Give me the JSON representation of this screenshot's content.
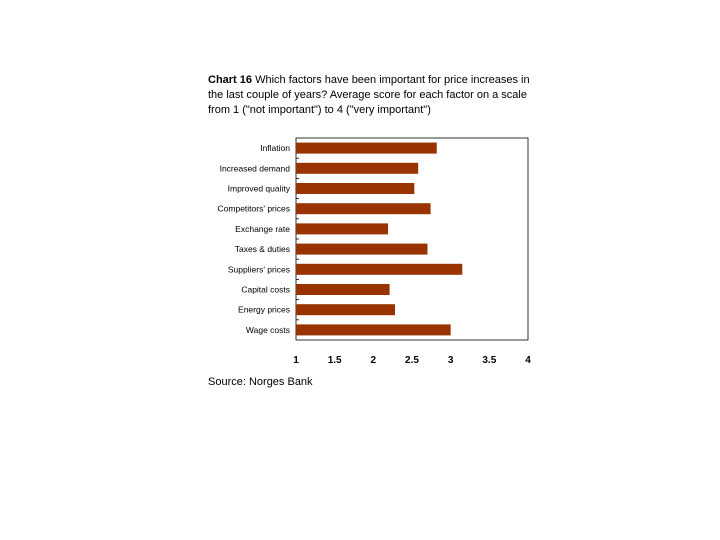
{
  "chart_data": {
    "type": "bar",
    "orientation": "horizontal",
    "title_bold": "Chart 16",
    "title": "Which factors have been important for price increases in the last couple of years? Average score for each factor on a scale from 1 (\"not important\") to 4 (\"very important\")",
    "categories": [
      "Inflation",
      "Increased demand",
      "Improved quality",
      "Competitors' prices",
      "Exchange rate",
      "Taxes & duties",
      "Suppliers' prices",
      "Capital costs",
      "Energy prices",
      "Wage costs"
    ],
    "values": [
      2.82,
      2.58,
      2.53,
      2.74,
      2.19,
      2.7,
      3.15,
      2.21,
      2.28,
      3.0
    ],
    "xlim": [
      1,
      4
    ],
    "xticks": [
      "1",
      "1.5",
      "2",
      "2.5",
      "3",
      "3.5",
      "4"
    ],
    "bar_color": "#993300",
    "grid": false
  },
  "source": "Source: Norges Bank"
}
